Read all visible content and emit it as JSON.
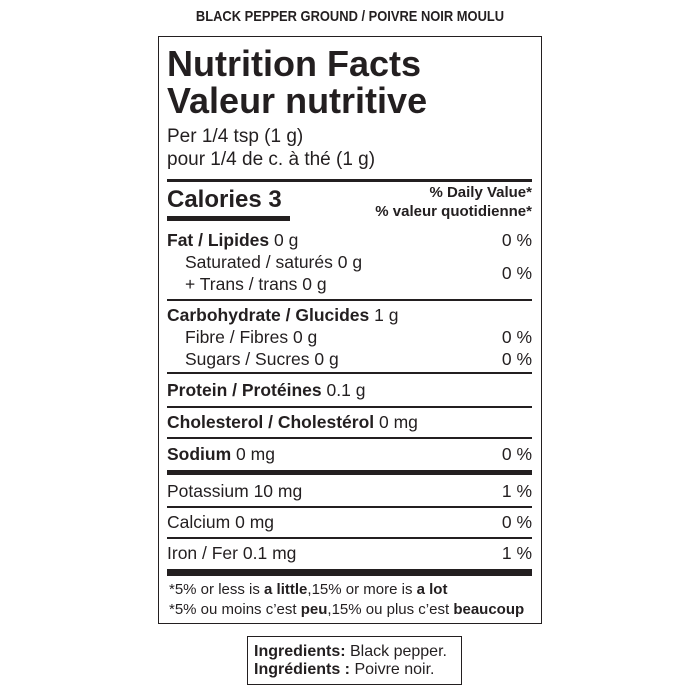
{
  "product_name": "BLACK PEPPER GROUND / POIVRE NOIR MOULU",
  "title_en": "Nutrition Facts",
  "title_fr": "Valeur nutritive",
  "serving_en": "Per 1/4 tsp (1 g)",
  "serving_fr": "pour 1/4 de c. à thé (1 g)",
  "calories": {
    "label": "Calories",
    "value": "3"
  },
  "dv_header_en": "% Daily Value*",
  "dv_header_fr": "% valeur quotidienne*",
  "nutrients": {
    "fat": {
      "label": "Fat / Lipides",
      "amount": "0 g",
      "dv": "0 %"
    },
    "saturated": {
      "label": "Saturated / saturés",
      "amount": "0 g"
    },
    "trans": {
      "label": "+ Trans / trans",
      "amount": "0 g"
    },
    "sat_trans_dv": "0 %",
    "carbohydrate": {
      "label": "Carbohydrate / Glucides",
      "amount": "1 g"
    },
    "fibre": {
      "label": "Fibre / Fibres",
      "amount": "0 g",
      "dv": "0 %"
    },
    "sugars": {
      "label": "Sugars / Sucres",
      "amount": "0 g",
      "dv": "0 %"
    },
    "protein": {
      "label": "Protein / Protéines",
      "amount": "0.1 g"
    },
    "cholesterol": {
      "label": "Cholesterol / Cholestérol",
      "amount": "0 mg"
    },
    "sodium": {
      "label": "Sodium",
      "amount": "0 mg",
      "dv": "0 %"
    },
    "potassium": {
      "label": "Potassium",
      "amount": "10 mg",
      "dv": "1 %"
    },
    "calcium": {
      "label": "Calcium",
      "amount": "0 mg",
      "dv": "0 %"
    },
    "iron": {
      "label": "Iron / Fer",
      "amount": "0.1 mg",
      "dv": "1 %"
    }
  },
  "footnote_en": {
    "a": "*5% or less is ",
    "b": "a little",
    "c": ",15% or more is ",
    "d": "a lot"
  },
  "footnote_fr": {
    "a": "*5% ou moins c’est ",
    "b": "peu",
    "c": ",15% ou plus c’est ",
    "d": "beaucoup"
  },
  "ingredients_en": {
    "label": "Ingredients:",
    "text": " Black pepper."
  },
  "ingredients_fr": {
    "label": "Ingrédients :",
    "text": " Poivre noir."
  }
}
